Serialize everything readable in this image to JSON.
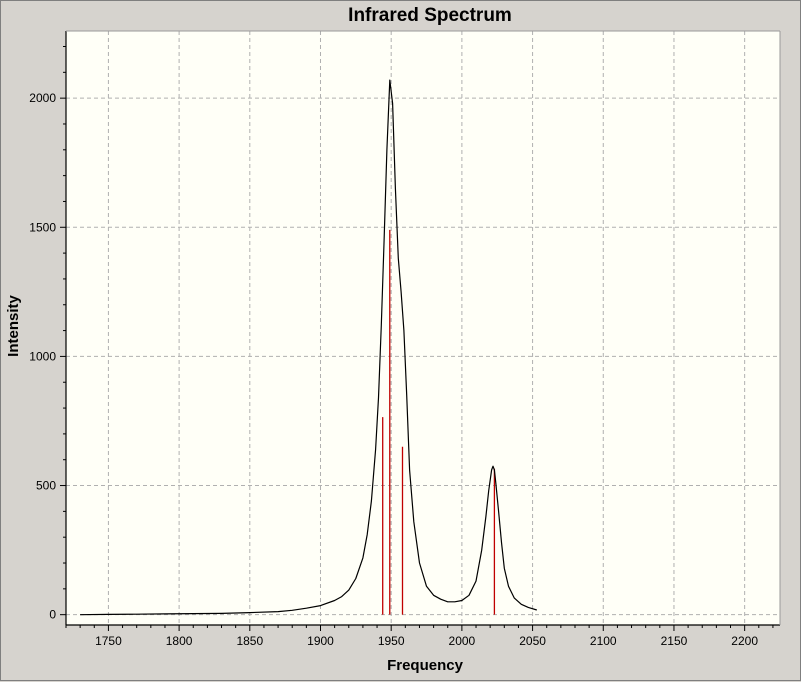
{
  "chart_data": {
    "type": "line",
    "title": "Infrared Spectrum",
    "xlabel": "Frequency",
    "ylabel": "Intensity",
    "xlim": [
      1720,
      2225
    ],
    "ylim": [
      -40,
      2260
    ],
    "x_ticks": [
      1750,
      1800,
      1850,
      1900,
      1950,
      2000,
      2050,
      2100,
      2150,
      2200
    ],
    "y_ticks": [
      0,
      500,
      1000,
      1500,
      2000
    ],
    "grid": true,
    "legend": "none",
    "colors": {
      "plot_bg": "#fffff7",
      "spectrum": "#000000",
      "sticks": "#c00000",
      "grid": "#b0b0b0",
      "window_bg": "#d6d3ce"
    },
    "series": [
      {
        "x": [
          1730,
          1750,
          1770,
          1790,
          1810,
          1830,
          1850,
          1870,
          1880,
          1890,
          1900,
          1910,
          1915,
          1920,
          1925,
          1930,
          1933,
          1936,
          1939,
          1941,
          1943,
          1945,
          1947,
          1949,
          1951,
          1953,
          1955,
          1957,
          1959,
          1961,
          1963,
          1966,
          1970,
          1975,
          1980,
          1985,
          1990,
          1995,
          2000,
          2005,
          2010,
          2014,
          2017,
          2019,
          2021,
          2022,
          2023,
          2024,
          2026,
          2028,
          2030,
          2033,
          2037,
          2042,
          2047,
          2053
        ],
        "y": [
          0,
          1,
          2,
          3,
          4,
          5,
          8,
          12,
          17,
          25,
          35,
          55,
          70,
          95,
          140,
          220,
          310,
          440,
          640,
          840,
          1120,
          1450,
          1800,
          2070,
          1980,
          1650,
          1380,
          1250,
          1100,
          850,
          560,
          360,
          200,
          110,
          75,
          60,
          50,
          50,
          55,
          75,
          130,
          250,
          380,
          480,
          560,
          575,
          560,
          510,
          400,
          280,
          180,
          110,
          65,
          40,
          28,
          18
        ]
      }
    ],
    "sticks": [
      {
        "x": 1944,
        "y": 765
      },
      {
        "x": 1949,
        "y": 1490
      },
      {
        "x": 1958,
        "y": 650
      },
      {
        "x": 2023,
        "y": 565
      }
    ]
  }
}
